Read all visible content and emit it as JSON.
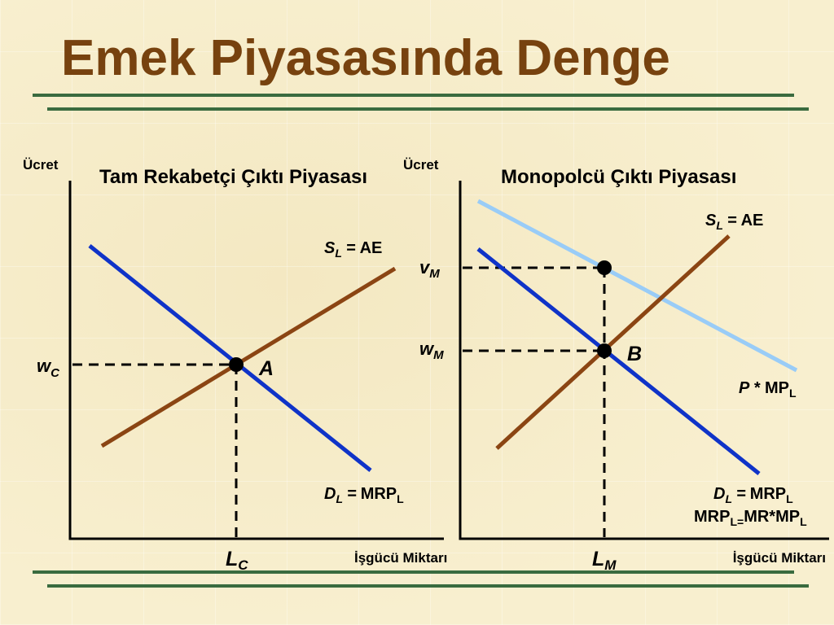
{
  "slide": {
    "title": "Emek Piyasasında Denge"
  },
  "colors": {
    "title": "#77420f",
    "rule": "#3a6b3f",
    "supply_curve": "#8b4513",
    "demand_curve": "#0f33c8",
    "vmp_curve": "#99ccf7"
  },
  "left_panel": {
    "title": "Tam Rekabetçi Çıktı Piyasası",
    "y_axis_label": "Ücret",
    "x_axis_label": "İşgücü Miktarı",
    "wage_label": {
      "main": "w",
      "sub": "C"
    },
    "quantity_label": {
      "main": "L",
      "sub": "C"
    },
    "equilibrium_label": "A",
    "supply_label": {
      "main": "S",
      "sub": "L",
      "eq": "=",
      "value": "AE"
    },
    "demand_label": {
      "main": "D",
      "sub": "L",
      "eq": "=",
      "value": "MRP",
      "value_sub": "L"
    }
  },
  "right_panel": {
    "title": "Monopolcü Çıktı Piyasası",
    "y_axis_label": "Ücret",
    "x_axis_label": "İşgücü Miktarı",
    "value_label": {
      "main": "v",
      "sub": "M"
    },
    "wage_label": {
      "main": "w",
      "sub": "M"
    },
    "quantity_label": {
      "main": "L",
      "sub": "M"
    },
    "equilibrium_label": "B",
    "supply_label": {
      "main": "S",
      "sub": "L",
      "eq": "=",
      "value": "AE"
    },
    "vmp_label": {
      "main": "P *",
      "value": "MP",
      "value_sub": "L"
    },
    "demand_label": {
      "main": "D",
      "sub": "L",
      "eq": "=",
      "value": "MRP",
      "value_sub": "L"
    },
    "mrp_formula": {
      "part1": "MRP",
      "sub1": "L=",
      "part2": "MR*MP",
      "sub2": "L"
    }
  }
}
